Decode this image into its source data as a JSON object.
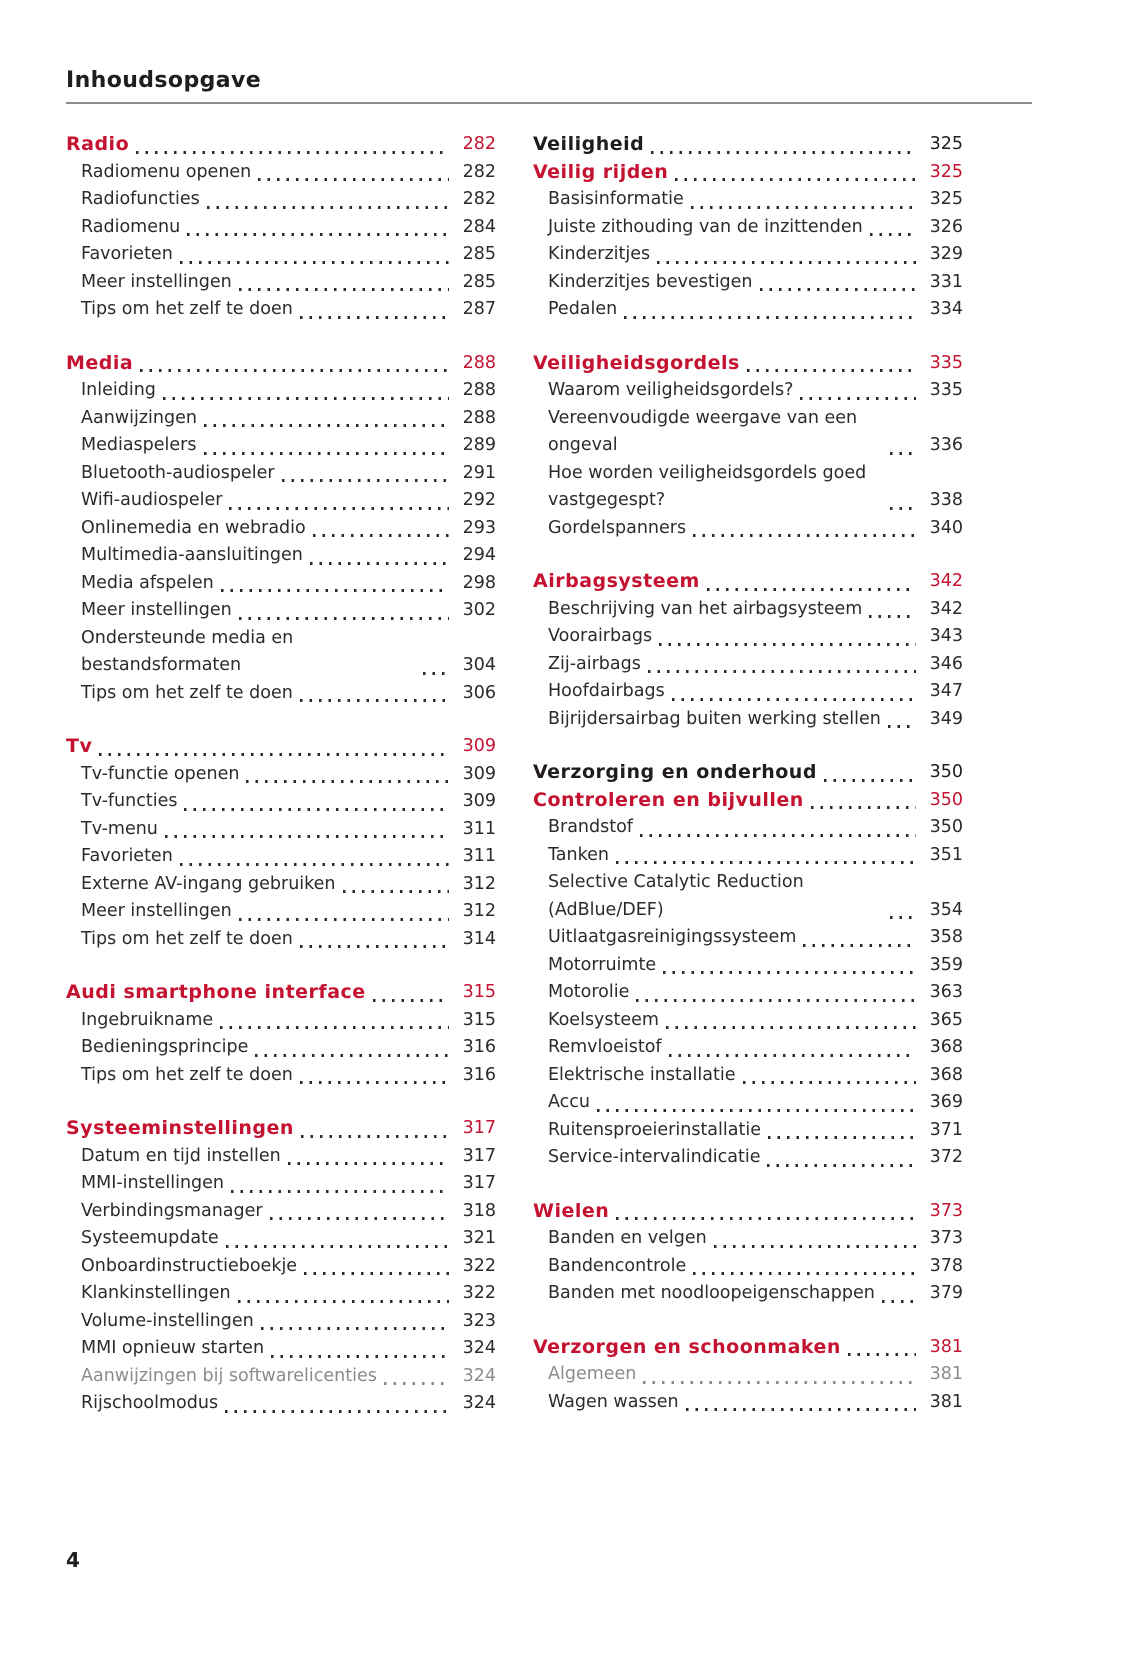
{
  "accent_color": "#c41230",
  "page": {
    "header_title": "Inhoudsopgave",
    "page_number": "4"
  },
  "toc": {
    "columns": [
      {
        "sections": [
          {
            "headings": [
              {
                "label": "Radio",
                "page": "282",
                "type": "chapter"
              }
            ],
            "items": [
              {
                "label": "Radiomenu openen",
                "page": "282"
              },
              {
                "label": "Radiofuncties",
                "page": "282"
              },
              {
                "label": "Radiomenu",
                "page": "284"
              },
              {
                "label": "Favorieten",
                "page": "285"
              },
              {
                "label": "Meer instellingen",
                "page": "285"
              },
              {
                "label": "Tips om het zelf te doen",
                "page": "287"
              }
            ]
          },
          {
            "headings": [
              {
                "label": "Media",
                "page": "288",
                "type": "chapter"
              }
            ],
            "items": [
              {
                "label": "Inleiding",
                "page": "288"
              },
              {
                "label": "Aanwijzingen",
                "page": "288"
              },
              {
                "label": "Mediaspelers",
                "page": "289"
              },
              {
                "label": "Bluetooth-audiospeler",
                "page": "291"
              },
              {
                "label": "Wifi-audiospeler",
                "page": "292"
              },
              {
                "label": "Onlinemedia en webradio",
                "page": "293"
              },
              {
                "label": "Multimedia-aansluitingen",
                "page": "294"
              },
              {
                "label": "Media afspelen",
                "page": "298"
              },
              {
                "label": "Meer instellingen",
                "page": "302"
              },
              {
                "label": "Ondersteunde media en bestandsformaten",
                "page": "304"
              },
              {
                "label": "Tips om het zelf te doen",
                "page": "306"
              }
            ]
          },
          {
            "headings": [
              {
                "label": "Tv",
                "page": "309",
                "type": "chapter"
              }
            ],
            "items": [
              {
                "label": "Tv-functie openen",
                "page": "309"
              },
              {
                "label": "Tv-functies",
                "page": "309"
              },
              {
                "label": "Tv-menu",
                "page": "311"
              },
              {
                "label": "Favorieten",
                "page": "311"
              },
              {
                "label": "Externe AV-ingang gebruiken",
                "page": "312"
              },
              {
                "label": "Meer instellingen",
                "page": "312"
              },
              {
                "label": "Tips om het zelf te doen",
                "page": "314"
              }
            ]
          },
          {
            "headings": [
              {
                "label": "Audi smartphone interface",
                "page": "315",
                "type": "chapter"
              }
            ],
            "items": [
              {
                "label": "Ingebruikname",
                "page": "315"
              },
              {
                "label": "Bedieningsprincipe",
                "page": "316"
              },
              {
                "label": "Tips om het zelf te doen",
                "page": "316"
              }
            ]
          },
          {
            "headings": [
              {
                "label": "Systeeminstellingen",
                "page": "317",
                "type": "chapter"
              }
            ],
            "items": [
              {
                "label": "Datum en tijd instellen",
                "page": "317"
              },
              {
                "label": "MMI-instellingen",
                "page": "317"
              },
              {
                "label": "Verbindingsmanager",
                "page": "318"
              },
              {
                "label": "Systeemupdate",
                "page": "321"
              },
              {
                "label": "Onboardinstructieboekje",
                "page": "322"
              },
              {
                "label": "Klankinstellingen",
                "page": "322"
              },
              {
                "label": "Volume-instellingen",
                "page": "323"
              },
              {
                "label": "MMI opnieuw starten",
                "page": "324"
              },
              {
                "label": "Aanwijzingen bij softwarelicenties",
                "page": "324",
                "muted": true
              },
              {
                "label": "Rijschoolmodus",
                "page": "324"
              }
            ]
          }
        ]
      },
      {
        "sections": [
          {
            "headings": [
              {
                "label": "Veiligheid",
                "page": "325",
                "type": "part"
              },
              {
                "label": "Veilig rijden",
                "page": "325",
                "type": "chapter"
              }
            ],
            "items": [
              {
                "label": "Basisinformatie",
                "page": "325"
              },
              {
                "label": "Juiste zithouding van de inzittenden",
                "page": "326"
              },
              {
                "label": "Kinderzitjes",
                "page": "329"
              },
              {
                "label": "Kinderzitjes bevestigen",
                "page": "331"
              },
              {
                "label": "Pedalen",
                "page": "334"
              }
            ]
          },
          {
            "headings": [
              {
                "label": "Veiligheidsgordels",
                "page": "335",
                "type": "chapter"
              }
            ],
            "items": [
              {
                "label": "Waarom veiligheidsgordels?",
                "page": "335"
              },
              {
                "label": "Vereenvoudigde weergave van een ongeval",
                "page": "336"
              },
              {
                "label": "Hoe worden veiligheidsgordels goed vastgegespt?",
                "page": "338"
              },
              {
                "label": "Gordelspanners",
                "page": "340"
              }
            ]
          },
          {
            "headings": [
              {
                "label": "Airbagsysteem",
                "page": "342",
                "type": "chapter"
              }
            ],
            "items": [
              {
                "label": "Beschrijving van het airbagsysteem",
                "page": "342"
              },
              {
                "label": "Voorairbags",
                "page": "343"
              },
              {
                "label": "Zij-airbags",
                "page": "346"
              },
              {
                "label": "Hoofdairbags",
                "page": "347"
              },
              {
                "label": "Bijrijdersairbag buiten werking stellen",
                "page": "349"
              }
            ]
          },
          {
            "headings": [
              {
                "label": "Verzorging en onderhoud",
                "page": "350",
                "type": "part"
              },
              {
                "label": "Controleren en bijvullen",
                "page": "350",
                "type": "chapter"
              }
            ],
            "items": [
              {
                "label": "Brandstof",
                "page": "350"
              },
              {
                "label": "Tanken",
                "page": "351"
              },
              {
                "label": "Selective Catalytic Reduction (AdBlue/​DEF)",
                "page": "354"
              },
              {
                "label": "Uitlaatgasreinigingssysteem",
                "page": "358"
              },
              {
                "label": "Motorruimte",
                "page": "359"
              },
              {
                "label": "Motorolie",
                "page": "363"
              },
              {
                "label": "Koelsysteem",
                "page": "365"
              },
              {
                "label": "Remvloeistof",
                "page": "368"
              },
              {
                "label": "Elektrische installatie",
                "page": "368"
              },
              {
                "label": "Accu",
                "page": "369"
              },
              {
                "label": "Ruitensproeierinstallatie",
                "page": "371"
              },
              {
                "label": "Service-intervalindicatie",
                "page": "372"
              }
            ]
          },
          {
            "headings": [
              {
                "label": "Wielen",
                "page": "373",
                "type": "chapter"
              }
            ],
            "items": [
              {
                "label": "Banden en velgen",
                "page": "373"
              },
              {
                "label": "Bandencontrole",
                "page": "378"
              },
              {
                "label": "Banden met noodloopeigenschappen",
                "page": "379"
              }
            ]
          },
          {
            "headings": [
              {
                "label": "Verzorgen en schoonmaken",
                "page": "381",
                "type": "chapter"
              }
            ],
            "items": [
              {
                "label": "Algemeen",
                "page": "381",
                "muted": true
              },
              {
                "label": "Wagen wassen",
                "page": "381"
              }
            ]
          }
        ]
      }
    ]
  }
}
